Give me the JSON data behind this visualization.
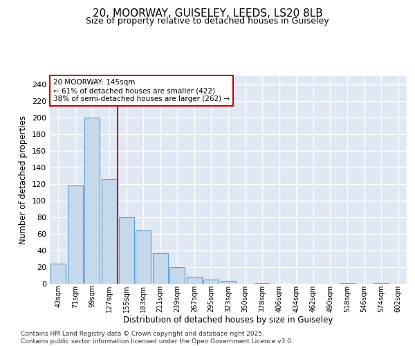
{
  "title_line1": "20, MOORWAY, GUISELEY, LEEDS, LS20 8LB",
  "title_line2": "Size of property relative to detached houses in Guiseley",
  "xlabel": "Distribution of detached houses by size in Guiseley",
  "ylabel": "Number of detached properties",
  "categories": [
    "43sqm",
    "71sqm",
    "99sqm",
    "127sqm",
    "155sqm",
    "183sqm",
    "211sqm",
    "239sqm",
    "267sqm",
    "295sqm",
    "323sqm",
    "350sqm",
    "378sqm",
    "406sqm",
    "434sqm",
    "462sqm",
    "490sqm",
    "518sqm",
    "546sqm",
    "574sqm",
    "602sqm"
  ],
  "values": [
    24,
    118,
    200,
    126,
    80,
    64,
    37,
    20,
    8,
    5,
    3,
    0,
    1,
    0,
    0,
    0,
    0,
    1,
    0,
    1,
    0
  ],
  "bar_color": "#c5d8ec",
  "bar_edge_color": "#5a9fd4",
  "background_color": "#e0e8f4",
  "grid_color": "#ffffff",
  "vline_x": 3.5,
  "vline_color": "#cc0000",
  "annotation_line1": "20 MOORWAY: 145sqm",
  "annotation_line2": "← 61% of detached houses are smaller (422)",
  "annotation_line3": "38% of semi-detached houses are larger (262) →",
  "annotation_box_color": "#cc0000",
  "ylim": [
    0,
    250
  ],
  "yticks": [
    0,
    20,
    40,
    60,
    80,
    100,
    120,
    140,
    160,
    180,
    200,
    220,
    240
  ],
  "footer_line1": "Contains HM Land Registry data © Crown copyright and database right 2025.",
  "footer_line2": "Contains public sector information licensed under the Open Government Licence v3.0."
}
